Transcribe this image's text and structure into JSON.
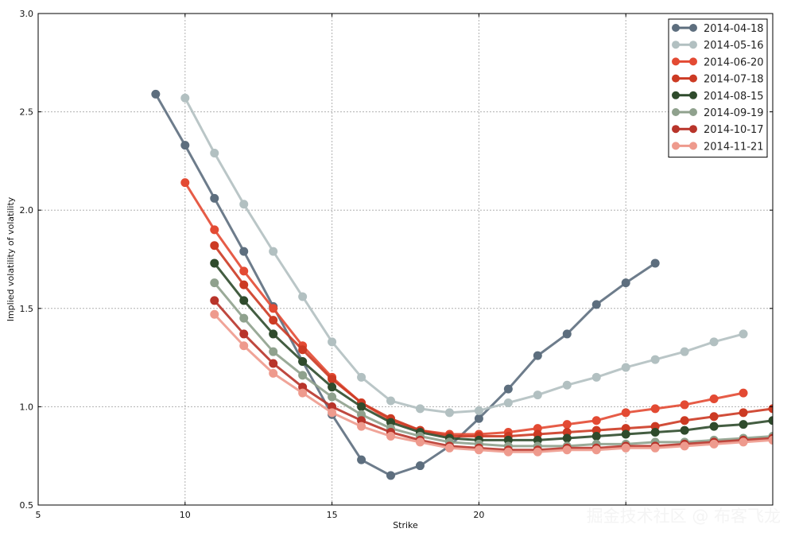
{
  "watermark": "掘金技术社区 @ 布客飞龙",
  "chart_data": {
    "type": "line",
    "xlabel": "Strike",
    "ylabel": "Implied volatility of volatility",
    "xlim": [
      5,
      30
    ],
    "ylim": [
      0.5,
      3.0
    ],
    "xticks": [
      5,
      10,
      15,
      20,
      25,
      30
    ],
    "xtick_labels": [
      "5",
      "10",
      "15",
      "20",
      "",
      ""
    ],
    "yticks": [
      0.5,
      1.0,
      1.5,
      2.0,
      2.5,
      3.0
    ],
    "ytick_labels": [
      "0.5",
      "1.0",
      "1.5",
      "2.0",
      "2.5",
      "3.0"
    ],
    "grid": true,
    "legend_position": "top-right",
    "series": [
      {
        "name": "2014-04-18",
        "color": "#5d6e7e",
        "x": [
          9,
          10,
          11,
          12,
          13,
          14,
          15,
          16,
          17,
          18,
          19,
          20,
          21,
          22,
          23,
          24,
          25,
          26
        ],
        "y": [
          2.59,
          2.33,
          2.06,
          1.79,
          1.51,
          1.23,
          0.96,
          0.73,
          0.65,
          0.7,
          0.8,
          0.94,
          1.09,
          1.26,
          1.37,
          1.52,
          1.63,
          1.73
        ]
      },
      {
        "name": "2014-05-16",
        "color": "#b2c0c1",
        "x": [
          10,
          11,
          12,
          13,
          14,
          15,
          16,
          17,
          18,
          19,
          20,
          21,
          22,
          23,
          24,
          25,
          26,
          27,
          28,
          29
        ],
        "y": [
          2.57,
          2.29,
          2.03,
          1.79,
          1.56,
          1.33,
          1.15,
          1.03,
          0.99,
          0.97,
          0.98,
          1.02,
          1.06,
          1.11,
          1.15,
          1.2,
          1.24,
          1.28,
          1.33,
          1.37
        ]
      },
      {
        "name": "2014-06-20",
        "color": "#e34a33",
        "x": [
          10,
          11,
          12,
          13,
          14,
          15,
          16,
          17,
          18,
          19,
          20,
          21,
          22,
          23,
          24,
          25,
          26,
          27,
          28,
          29
        ],
        "y": [
          2.14,
          1.9,
          1.69,
          1.5,
          1.31,
          1.15,
          1.02,
          0.93,
          0.88,
          0.86,
          0.86,
          0.87,
          0.89,
          0.91,
          0.93,
          0.97,
          0.99,
          1.01,
          1.04,
          1.07
        ]
      },
      {
        "name": "2014-07-18",
        "color": "#cc3a23",
        "x": [
          11,
          12,
          13,
          14,
          15,
          16,
          17,
          18,
          19,
          20,
          21,
          22,
          23,
          24,
          25,
          26,
          27,
          28,
          29,
          30
        ],
        "y": [
          1.82,
          1.62,
          1.44,
          1.29,
          1.14,
          1.02,
          0.94,
          0.88,
          0.85,
          0.85,
          0.85,
          0.86,
          0.87,
          0.88,
          0.89,
          0.9,
          0.93,
          0.95,
          0.97,
          0.99
        ]
      },
      {
        "name": "2014-08-15",
        "color": "#2f4b2c",
        "x": [
          11,
          12,
          13,
          14,
          15,
          16,
          17,
          18,
          19,
          20,
          21,
          22,
          23,
          24,
          25,
          26,
          27,
          28,
          29,
          30
        ],
        "y": [
          1.73,
          1.54,
          1.37,
          1.23,
          1.1,
          1.0,
          0.92,
          0.87,
          0.84,
          0.83,
          0.83,
          0.83,
          0.84,
          0.85,
          0.86,
          0.87,
          0.88,
          0.9,
          0.91,
          0.93
        ]
      },
      {
        "name": "2014-09-19",
        "color": "#8fa18d",
        "x": [
          11,
          12,
          13,
          14,
          15,
          16,
          17,
          18,
          19,
          20,
          21,
          22,
          23,
          24,
          25,
          26,
          27,
          28,
          29,
          30
        ],
        "y": [
          1.63,
          1.45,
          1.28,
          1.16,
          1.05,
          0.96,
          0.89,
          0.85,
          0.82,
          0.81,
          0.8,
          0.8,
          0.8,
          0.81,
          0.81,
          0.82,
          0.82,
          0.83,
          0.84,
          0.85
        ]
      },
      {
        "name": "2014-10-17",
        "color": "#b8342a",
        "x": [
          11,
          12,
          13,
          14,
          15,
          16,
          17,
          18,
          19,
          20,
          21,
          22,
          23,
          24,
          25,
          26,
          27,
          28,
          29,
          30
        ],
        "y": [
          1.54,
          1.37,
          1.22,
          1.1,
          1.0,
          0.93,
          0.87,
          0.83,
          0.8,
          0.79,
          0.78,
          0.78,
          0.79,
          0.79,
          0.8,
          0.8,
          0.81,
          0.82,
          0.83,
          0.84
        ]
      },
      {
        "name": "2014-11-21",
        "color": "#ee9a8d",
        "x": [
          11,
          12,
          13,
          14,
          15,
          16,
          17,
          18,
          19,
          20,
          21,
          22,
          23,
          24,
          25,
          26,
          27,
          28,
          29,
          30
        ],
        "y": [
          1.47,
          1.31,
          1.17,
          1.07,
          0.97,
          0.9,
          0.85,
          0.82,
          0.79,
          0.78,
          0.77,
          0.77,
          0.78,
          0.78,
          0.79,
          0.79,
          0.8,
          0.81,
          0.82,
          0.83
        ]
      }
    ]
  }
}
